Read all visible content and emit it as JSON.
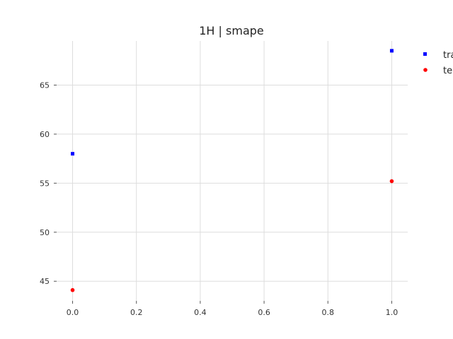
{
  "chart_data": {
    "type": "scatter",
    "title": "1H | smape",
    "xlabel": "",
    "ylabel": "",
    "xlim": [
      -0.05,
      1.05
    ],
    "ylim": [
      43,
      69.5
    ],
    "x_ticks": [
      0.0,
      0.2,
      0.4,
      0.6,
      0.8,
      1.0
    ],
    "x_tick_labels": [
      "0.0",
      "0.2",
      "0.4",
      "0.6",
      "0.8",
      "1.0"
    ],
    "y_ticks": [
      45,
      50,
      55,
      60,
      65
    ],
    "y_tick_labels": [
      "45",
      "50",
      "55",
      "60",
      "65"
    ],
    "grid": true,
    "legend_position": "top-right, outside plot (clipped)",
    "series": [
      {
        "name": "tra",
        "marker": "square",
        "color": "#0000ff",
        "x": [
          0.0,
          1.0
        ],
        "y": [
          58.0,
          68.5
        ]
      },
      {
        "name": "te",
        "marker": "circle",
        "color": "#ff0000",
        "x": [
          0.0,
          1.0
        ],
        "y": [
          44.1,
          55.2
        ]
      }
    ]
  }
}
